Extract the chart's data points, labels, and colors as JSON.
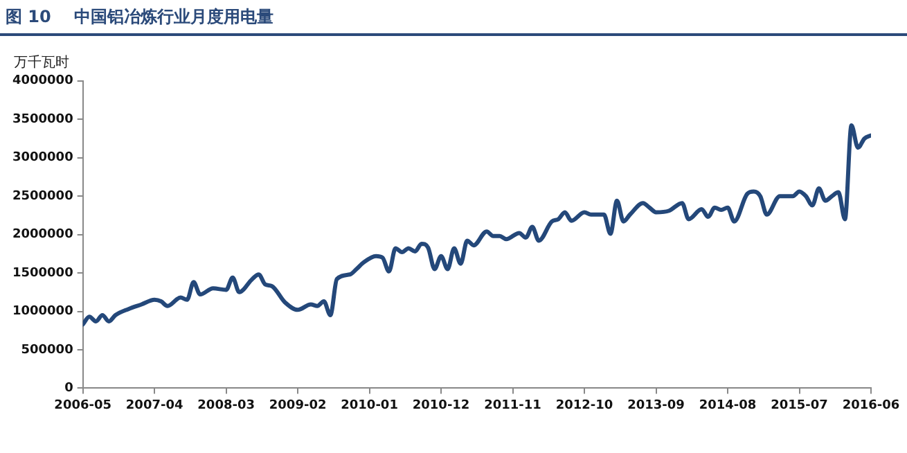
{
  "chart_data": {
    "type": "line",
    "title": "图 10    中国铝冶炼行业月度用电量",
    "ylabel": "万千瓦时",
    "xlim": [
      "2006-05",
      "2016-06"
    ],
    "xticks": [
      "2006-05",
      "2007-04",
      "2008-03",
      "2009-02",
      "2010-01",
      "2010-12",
      "2011-11",
      "2012-10",
      "2013-09",
      "2014-08",
      "2015-07",
      "2016-06"
    ],
    "ylim": [
      0,
      4000000
    ],
    "yticks": [
      0,
      500000,
      1000000,
      1500000,
      2000000,
      2500000,
      3000000,
      3500000,
      4000000
    ],
    "grid": false,
    "legend": false,
    "marker": "none",
    "line_style": "solid",
    "series": [
      {
        "color": "#24487a",
        "x": [
          "2006-05",
          "2006-06",
          "2006-07",
          "2006-08",
          "2006-09",
          "2006-10",
          "2006-12",
          "2007-02",
          "2007-04",
          "2007-05",
          "2007-06",
          "2007-08",
          "2007-09",
          "2007-10",
          "2007-11",
          "2008-01",
          "2008-03",
          "2008-04",
          "2008-05",
          "2008-07",
          "2008-08",
          "2008-09",
          "2008-10",
          "2008-12",
          "2009-02",
          "2009-04",
          "2009-05",
          "2009-06",
          "2009-07",
          "2009-08",
          "2009-10",
          "2009-11",
          "2009-12",
          "2010-02",
          "2010-03",
          "2010-04",
          "2010-05",
          "2010-06",
          "2010-07",
          "2010-08",
          "2010-09",
          "2010-10",
          "2010-11",
          "2010-12",
          "2011-01",
          "2011-02",
          "2011-03",
          "2011-04",
          "2011-05",
          "2011-07",
          "2011-08",
          "2011-09",
          "2011-10",
          "2011-12",
          "2012-01",
          "2012-02",
          "2012-03",
          "2012-05",
          "2012-06",
          "2012-07",
          "2012-08",
          "2012-10",
          "2012-11",
          "2013-01",
          "2013-02",
          "2013-03",
          "2013-04",
          "2013-05",
          "2013-07",
          "2013-08",
          "2013-09",
          "2013-11",
          "2014-01",
          "2014-02",
          "2014-04",
          "2014-05",
          "2014-06",
          "2014-07",
          "2014-08",
          "2014-09",
          "2014-11",
          "2014-12",
          "2015-01",
          "2015-02",
          "2015-04",
          "2015-06",
          "2015-07",
          "2015-08",
          "2015-09",
          "2015-10",
          "2015-11",
          "2015-12",
          "2016-01",
          "2016-02",
          "2016-03",
          "2016-04",
          "2016-05",
          "2016-06"
        ],
        "values": [
          830000,
          930000,
          870000,
          950000,
          870000,
          950000,
          1030000,
          1090000,
          1150000,
          1130000,
          1070000,
          1180000,
          1150000,
          1380000,
          1220000,
          1300000,
          1280000,
          1440000,
          1250000,
          1420000,
          1480000,
          1350000,
          1330000,
          1120000,
          1020000,
          1090000,
          1070000,
          1130000,
          950000,
          1420000,
          1480000,
          1550000,
          1630000,
          1720000,
          1700000,
          1520000,
          1820000,
          1770000,
          1820000,
          1780000,
          1880000,
          1830000,
          1550000,
          1720000,
          1550000,
          1820000,
          1620000,
          1920000,
          1860000,
          2040000,
          1980000,
          1980000,
          1940000,
          2020000,
          1960000,
          2100000,
          1920000,
          2170000,
          2200000,
          2290000,
          2180000,
          2290000,
          2260000,
          2260000,
          2010000,
          2440000,
          2170000,
          2260000,
          2410000,
          2350000,
          2290000,
          2310000,
          2410000,
          2200000,
          2330000,
          2230000,
          2350000,
          2320000,
          2350000,
          2170000,
          2530000,
          2560000,
          2500000,
          2260000,
          2500000,
          2500000,
          2560000,
          2500000,
          2380000,
          2600000,
          2440000,
          2500000,
          2550000,
          2200000,
          3420000,
          3130000,
          3250000,
          3290000
        ]
      }
    ]
  }
}
